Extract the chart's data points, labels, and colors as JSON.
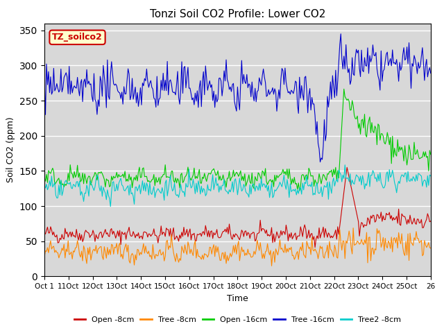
{
  "title": "Tonzi Soil CO2 Profile: Lower CO2",
  "xlabel": "Time",
  "ylabel": "Soil CO2 (ppm)",
  "ylim": [
    0,
    360
  ],
  "yticks": [
    0,
    50,
    100,
    150,
    200,
    250,
    300,
    350
  ],
  "n_points": 375,
  "xtick_labels": [
    "Oct 1",
    "11Oct",
    "12Oct",
    "13Oct",
    "14Oct",
    "15Oct",
    "16Oct",
    "17Oct",
    "18Oct",
    "19Oct",
    "20Oct",
    "21Oct",
    "22Oct",
    "23Oct",
    "24Oct",
    "25Oct",
    "26"
  ],
  "annotation_text": "TZ_soilco2",
  "annotation_box_facecolor": "#ffffcc",
  "annotation_box_edgecolor": "#cc0000",
  "legend_labels": [
    "Open -8cm",
    "Tree -8cm",
    "Open -16cm",
    "Tree -16cm",
    "Tree2 -8cm"
  ],
  "line_colors": [
    "#cc0000",
    "#ff8800",
    "#00cc00",
    "#0000cc",
    "#00cccc"
  ],
  "background_color": "#d8d8d8",
  "transition_point": 285
}
